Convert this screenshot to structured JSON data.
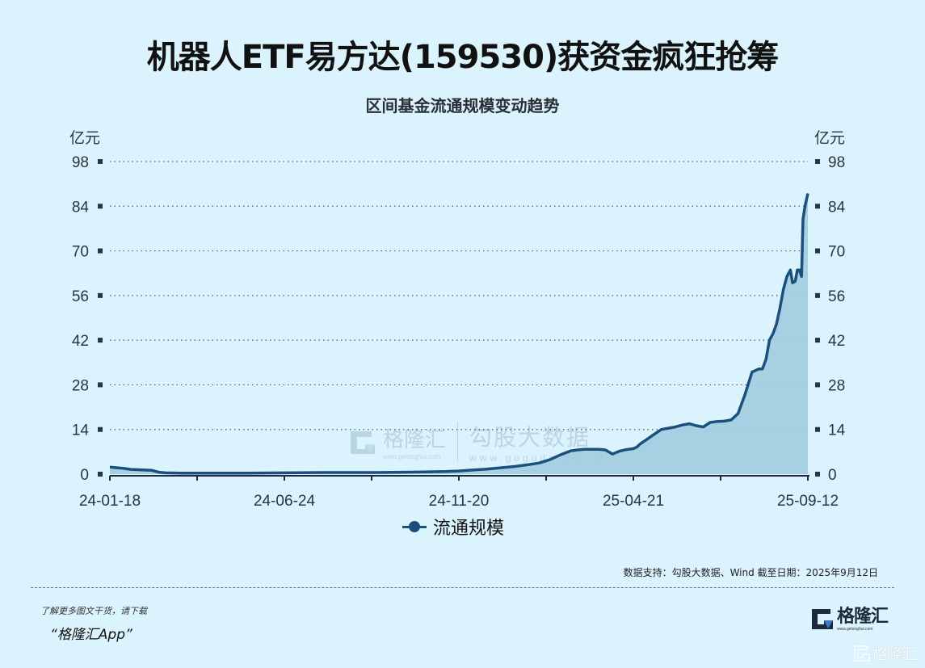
{
  "header": {
    "title": "机器人ETF易方达(159530)获资金疯狂抢筹",
    "subtitle": "区间基金流通规模变动趋势"
  },
  "axes": {
    "left_unit": "亿元",
    "right_unit": "亿元",
    "y_ticks": [
      0,
      14,
      28,
      42,
      56,
      70,
      84,
      98
    ],
    "x_labels": [
      "24-01-18",
      "24-06-24",
      "24-11-20",
      "25-04-21",
      "25-09-12"
    ]
  },
  "legend": {
    "label": "流通规模",
    "color": "#1b4f7e"
  },
  "colors": {
    "background": "#daf3fd",
    "line": "#1b4f7e",
    "area": "#a5cde2",
    "grid": "#4d5a66"
  },
  "watermark": {
    "brand": "格隆汇",
    "brand_url": "www.gelonghui.com",
    "gogu": "勾股大数据",
    "gogu_url": "www.gogudata.com"
  },
  "footer": {
    "source": "数据支持：勾股大数据、Wind 截至日期：2025年9月12日",
    "promo_line1": "了解更多图文干货，请下载",
    "promo_line2": "“格隆汇App”",
    "brand_name": "格隆汇",
    "brand_url": "www.gelonghui.com",
    "corner_brand": "格隆汇"
  },
  "chart_data": {
    "type": "area",
    "title": "机器人ETF易方达(159530)获资金疯狂抢筹",
    "subtitle": "区间基金流通规模变动趋势",
    "xlabel": "",
    "ylabel": "亿元",
    "ylim": [
      0,
      98
    ],
    "grid": true,
    "legend_position": "bottom",
    "series": [
      {
        "name": "流通规模",
        "x_frac": [
          0.0,
          0.01,
          0.02,
          0.03,
          0.04,
          0.05,
          0.06,
          0.07,
          0.08,
          0.1,
          0.13,
          0.16,
          0.2,
          0.25,
          0.3,
          0.34,
          0.38,
          0.42,
          0.45,
          0.48,
          0.5,
          0.52,
          0.54,
          0.56,
          0.58,
          0.6,
          0.615,
          0.63,
          0.645,
          0.66,
          0.67,
          0.68,
          0.69,
          0.7,
          0.71,
          0.72,
          0.73,
          0.74,
          0.75,
          0.755,
          0.76,
          0.77,
          0.78,
          0.79,
          0.8,
          0.81,
          0.82,
          0.83,
          0.84,
          0.85,
          0.86,
          0.87,
          0.88,
          0.89,
          0.9,
          0.91,
          0.92,
          0.93,
          0.935,
          0.94,
          0.945,
          0.95,
          0.955,
          0.96,
          0.965,
          0.97,
          0.975,
          0.978,
          0.982,
          0.985,
          0.988,
          0.991,
          0.993,
          0.996,
          1.0
        ],
        "values": [
          2.2,
          2.0,
          1.8,
          1.5,
          1.4,
          1.3,
          1.2,
          0.6,
          0.4,
          0.3,
          0.3,
          0.3,
          0.3,
          0.4,
          0.5,
          0.5,
          0.5,
          0.6,
          0.7,
          0.8,
          1.0,
          1.3,
          1.6,
          2.0,
          2.4,
          3.0,
          3.5,
          4.5,
          6.0,
          7.3,
          7.6,
          7.8,
          7.8,
          7.8,
          7.6,
          6.3,
          7.2,
          7.7,
          8.0,
          8.5,
          9.5,
          11.0,
          12.5,
          14.0,
          14.4,
          14.8,
          15.4,
          15.8,
          15.2,
          14.8,
          16.2,
          16.5,
          16.6,
          17.0,
          19.0,
          25.0,
          32.0,
          33.0,
          33.0,
          36.0,
          42.0,
          44.0,
          47.0,
          52.0,
          58.0,
          62.0,
          64.0,
          60.0,
          60.5,
          64.0,
          64.0,
          62.0,
          80.0,
          84.0,
          88.0
        ]
      }
    ],
    "x_tick_labels": [
      "24-01-18",
      "24-06-24",
      "24-11-20",
      "25-04-21",
      "25-09-12"
    ],
    "y_tick_labels": [
      0,
      14,
      28,
      42,
      56,
      70,
      84,
      98
    ]
  }
}
